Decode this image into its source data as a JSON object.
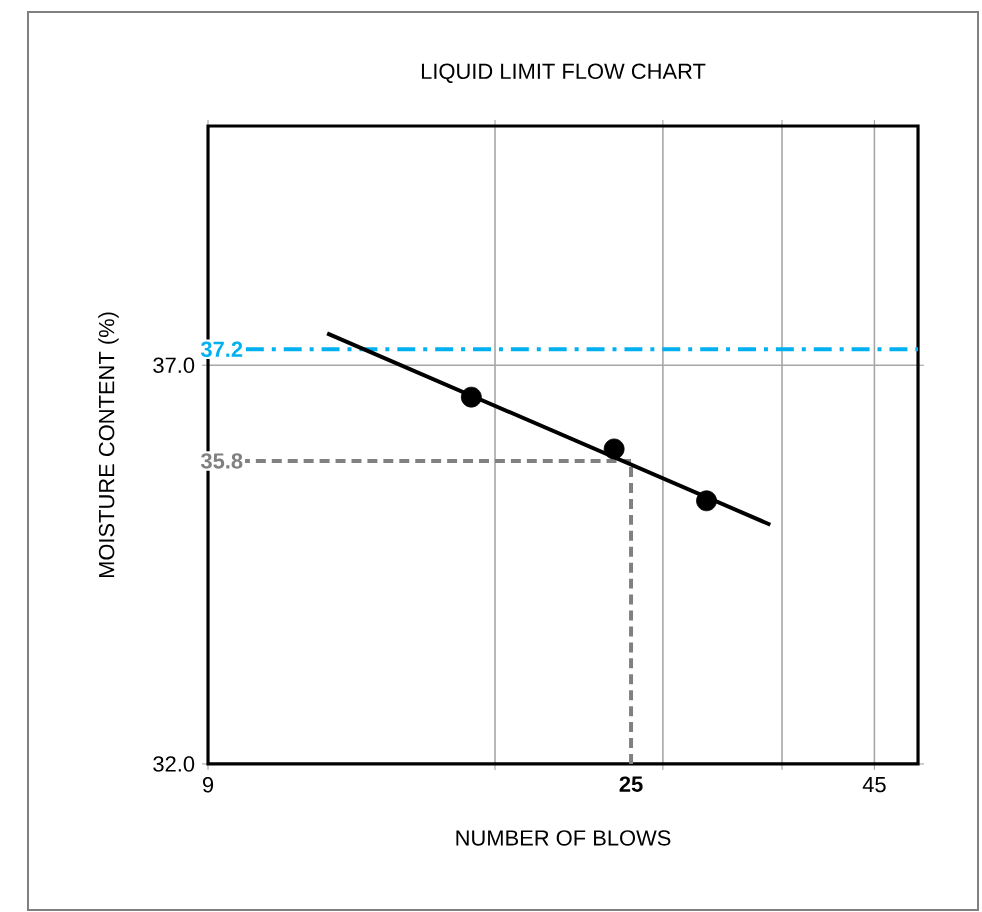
{
  "chart_data": {
    "type": "scatter",
    "title": "LIQUID LIMIT FLOW CHART",
    "xlabel": "NUMBER OF BLOWS",
    "ylabel": "MOISTURE CONTENT (%)",
    "log": "x",
    "xlim": [
      9,
      50
    ],
    "ylim": [
      32,
      40
    ],
    "xticks": [
      9,
      {
        "value": 18,
        "label": null
      },
      {
        "value": 27,
        "label": null
      },
      {
        "value": 36,
        "label": null
      },
      45
    ],
    "yticks": [
      {
        "value": 32,
        "label": "32.0"
      },
      {
        "value": 37,
        "label": "37.0"
      }
    ],
    "grid": true,
    "series": [
      {
        "type": "scatter",
        "marker": "circle",
        "color": "#000000",
        "x": [
          17,
          24,
          30
        ],
        "values": [
          36.6,
          35.95,
          35.3
        ]
      },
      {
        "type": "line",
        "color": "#000000",
        "marker": "none",
        "line_style": "solid",
        "x": [
          12,
          35
        ],
        "values": [
          37.4,
          35.0
        ]
      }
    ],
    "ref_lines": [
      {
        "axis": "y",
        "value": 37.2,
        "label": "37.2",
        "color": "#00b0f0",
        "line_style": "dashdot"
      },
      {
        "axis": "y",
        "value": 35.8,
        "label": "35.8",
        "color": "#808080",
        "line_style": "dashed"
      },
      {
        "axis": "x",
        "value": 25,
        "label": "25",
        "color": "#808080",
        "line_style": "dashed"
      }
    ]
  }
}
